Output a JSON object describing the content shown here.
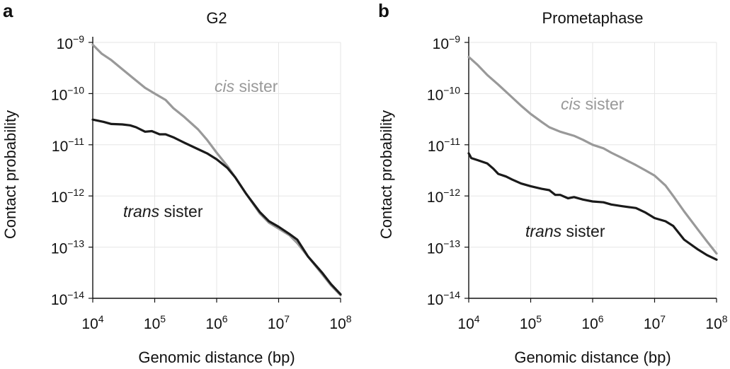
{
  "chart_data": [
    {
      "panel_letter": "a",
      "type": "line",
      "title": "G2",
      "xlabel": "Genomic distance (bp)",
      "ylabel": "Contact probability",
      "x_scale": "log",
      "y_scale": "log",
      "xlim": [
        10000,
        100000000
      ],
      "ylim": [
        1e-14,
        1e-09
      ],
      "x_ticks": [
        {
          "base": "10",
          "exp": "4"
        },
        {
          "base": "10",
          "exp": "5"
        },
        {
          "base": "10",
          "exp": "6"
        },
        {
          "base": "10",
          "exp": "7"
        },
        {
          "base": "10",
          "exp": "8"
        }
      ],
      "y_ticks": [
        {
          "base": "10",
          "exp": "−14"
        },
        {
          "base": "10",
          "exp": "−13"
        },
        {
          "base": "10",
          "exp": "−12"
        },
        {
          "base": "10",
          "exp": "−11"
        },
        {
          "base": "10",
          "exp": "−10"
        },
        {
          "base": "10",
          "exp": "−9"
        }
      ],
      "grid": true,
      "series": [
        {
          "label_italic": "cis",
          "label_rest": " sister",
          "color": "#999999",
          "x": [
            10000,
            14000,
            20000,
            30000,
            45000,
            70000,
            100000,
            150000,
            200000,
            300000,
            500000,
            700000,
            1000000,
            1500000,
            2000000,
            3000000,
            5000000,
            7000000,
            10000000,
            15000000,
            20000000,
            30000000,
            50000000,
            70000000,
            100000000
          ],
          "y": [
            9e-10,
            6e-10,
            4.5e-10,
            3e-10,
            2e-10,
            1.3e-10,
            1e-10,
            7.5e-11,
            5.2e-11,
            3.5e-11,
            2e-11,
            1.25e-11,
            7e-12,
            3.8e-12,
            2.3e-12,
            1.1e-12,
            4.5e-13,
            3e-13,
            2.3e-13,
            1.7e-13,
            1.2e-13,
            6.5e-14,
            3e-14,
            1.8e-14,
            1.15e-14
          ]
        },
        {
          "label_italic": "trans",
          "label_rest": " sister",
          "color": "#1a1a1a",
          "x": [
            10000,
            15000,
            20000,
            30000,
            40000,
            50000,
            70000,
            90000,
            120000,
            150000,
            200000,
            300000,
            500000,
            700000,
            1000000,
            1500000,
            2000000,
            3000000,
            5000000,
            7000000,
            10000000,
            15000000,
            20000000,
            30000000,
            50000000,
            70000000,
            100000000
          ],
          "y": [
            3.1e-11,
            2.8e-11,
            2.55e-11,
            2.5e-11,
            2.4e-11,
            2.2e-11,
            1.8e-11,
            1.85e-11,
            1.6e-11,
            1.6e-11,
            1.4e-11,
            1.1e-11,
            8.2e-12,
            6.8e-12,
            5.2e-12,
            3.5e-12,
            2.3e-12,
            1.1e-12,
            4.8e-13,
            3.2e-13,
            2.5e-13,
            1.8e-13,
            1.4e-13,
            6.5e-14,
            3.2e-14,
            1.9e-14,
            1.2e-14
          ]
        }
      ]
    },
    {
      "panel_letter": "b",
      "type": "line",
      "title": "Prometaphase",
      "xlabel": "Genomic distance (bp)",
      "ylabel": "Contact probability",
      "x_scale": "log",
      "y_scale": "log",
      "xlim": [
        10000,
        100000000
      ],
      "ylim": [
        1e-14,
        1e-09
      ],
      "x_ticks": [
        {
          "base": "10",
          "exp": "4"
        },
        {
          "base": "10",
          "exp": "5"
        },
        {
          "base": "10",
          "exp": "6"
        },
        {
          "base": "10",
          "exp": "7"
        },
        {
          "base": "10",
          "exp": "8"
        }
      ],
      "y_ticks": [
        {
          "base": "10",
          "exp": "−14"
        },
        {
          "base": "10",
          "exp": "−13"
        },
        {
          "base": "10",
          "exp": "−12"
        },
        {
          "base": "10",
          "exp": "−11"
        },
        {
          "base": "10",
          "exp": "−10"
        },
        {
          "base": "10",
          "exp": "−9"
        }
      ],
      "grid": true,
      "series": [
        {
          "label_italic": "cis",
          "label_rest": " sister",
          "color": "#999999",
          "x": [
            10000,
            14000,
            20000,
            30000,
            45000,
            70000,
            100000,
            150000,
            200000,
            300000,
            500000,
            700000,
            1000000,
            1500000,
            2000000,
            3000000,
            5000000,
            7000000,
            10000000,
            15000000,
            20000000,
            30000000,
            50000000,
            70000000,
            100000000
          ],
          "y": [
            5.2e-10,
            3.6e-10,
            2.3e-10,
            1.5e-10,
            9.5e-11,
            5.8e-11,
            4e-11,
            2.8e-11,
            2.2e-11,
            1.8e-11,
            1.5e-11,
            1.25e-11,
            1e-11,
            8.5e-12,
            7e-12,
            5.5e-12,
            4e-12,
            3.2e-12,
            2.5e-12,
            1.6e-12,
            1e-12,
            5e-13,
            2.2e-13,
            1.3e-13,
            7.5e-14
          ]
        },
        {
          "label_italic": "trans",
          "label_rest": " sister",
          "color": "#1a1a1a",
          "x": [
            10000,
            11000,
            14000,
            20000,
            25000,
            30000,
            40000,
            50000,
            70000,
            100000,
            150000,
            200000,
            250000,
            300000,
            400000,
            500000,
            700000,
            1000000,
            1500000,
            2000000,
            3000000,
            5000000,
            7000000,
            10000000,
            15000000,
            20000000,
            30000000,
            50000000,
            70000000,
            100000000
          ],
          "y": [
            6.8e-12,
            5.5e-12,
            5e-12,
            4.3e-12,
            3.4e-12,
            2.7e-12,
            2.4e-12,
            2.1e-12,
            1.75e-12,
            1.55e-12,
            1.38e-12,
            1.3e-12,
            1.05e-12,
            1.05e-12,
            9e-13,
            9.5e-13,
            8.5e-13,
            7.8e-13,
            7.5e-13,
            6.8e-13,
            6.3e-13,
            5.8e-13,
            4.8e-13,
            3.7e-13,
            3.2e-13,
            2.6e-13,
            1.4e-13,
            9e-14,
            7e-14,
            5.7e-14
          ]
        }
      ]
    }
  ]
}
